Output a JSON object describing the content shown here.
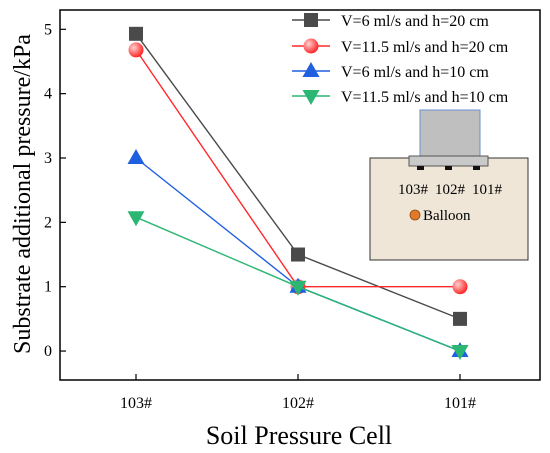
{
  "chart_data": {
    "type": "line",
    "categories": [
      "103#",
      "102#",
      "101#"
    ],
    "xlabel": "Soil Pressure Cell",
    "ylabel": "Substrate additional pressure/kPa",
    "ylim": [
      -0.45,
      5.3
    ],
    "yticks": [
      0,
      1,
      2,
      3,
      4,
      5
    ],
    "grid": false,
    "legend_position": "top-right",
    "series": [
      {
        "name": "V=6 ml/s and h=20 cm",
        "values": [
          4.93,
          1.5,
          0.5
        ],
        "marker": "square",
        "color": "#4a4a4a"
      },
      {
        "name": "V=11.5 ml/s and h=20 cm",
        "values": [
          4.68,
          1.0,
          1.0
        ],
        "marker": "circle",
        "color": "#ff2a2a"
      },
      {
        "name": "V=6 ml/s and h=10 cm",
        "values": [
          3.0,
          1.0,
          0.0
        ],
        "marker": "triangle-up",
        "color": "#1f5fe0"
      },
      {
        "name": "V=11.5 ml/s and h=10 cm",
        "values": [
          2.08,
          1.0,
          0.0
        ],
        "marker": "triangle-down",
        "color": "#2bb673"
      }
    ],
    "inset": {
      "cell_labels": [
        "103#",
        "102#",
        "101#"
      ],
      "balloon_label": "Balloon",
      "colors": {
        "soil": "#efe6d8",
        "block": "#bfbfbf",
        "block_border": "#6a8fd0",
        "plate": "#c9c9c9",
        "balloon": "#e07a2a"
      }
    }
  }
}
